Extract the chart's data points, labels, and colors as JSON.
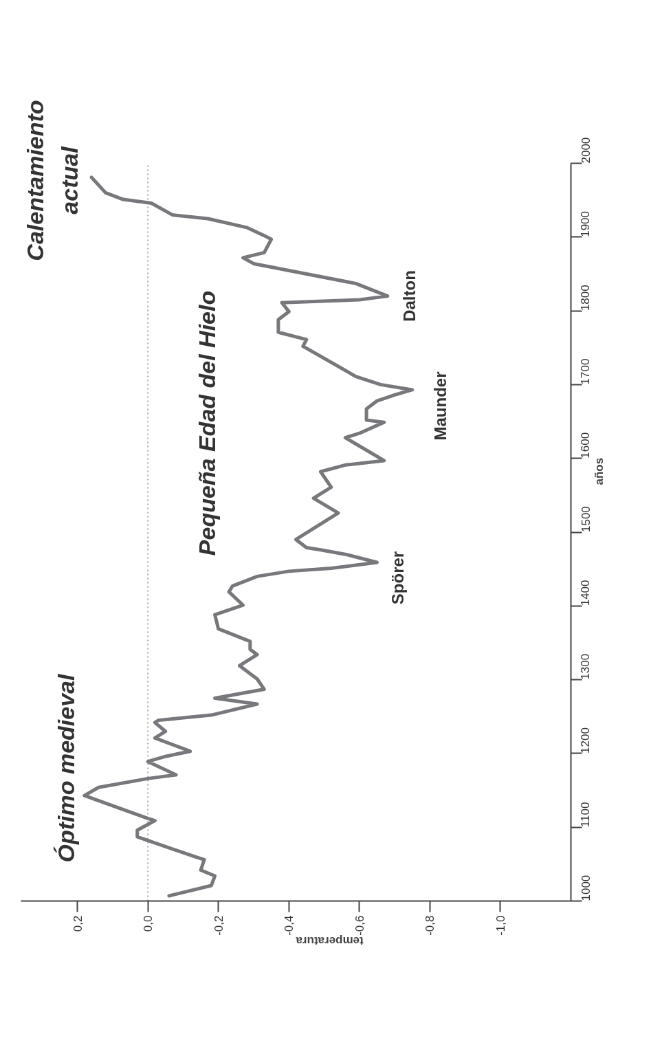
{
  "chart_data": {
    "type": "line",
    "xlabel": "temperatura",
    "ylabel": "años",
    "series": [
      {
        "color": "#77787b",
        "x": [
          -0.06,
          -0.18,
          -0.19,
          -0.15,
          -0.16,
          -0.14,
          0.03,
          0.03,
          -0.02,
          0.0,
          0.18,
          0.14,
          0.0,
          -0.08,
          0.0,
          -0.05,
          -0.12,
          -0.02,
          -0.05,
          -0.02,
          -0.03,
          -0.18,
          -0.31,
          -0.19,
          -0.33,
          -0.31,
          -0.26,
          -0.31,
          -0.29,
          -0.29,
          -0.2,
          -0.19,
          -0.27,
          -0.23,
          -0.24,
          -0.31,
          -0.4,
          -0.52,
          -0.65,
          -0.56,
          -0.49,
          -0.45,
          -0.42,
          -0.54,
          -0.47,
          -0.52,
          -0.49,
          -0.56,
          -0.67,
          -0.56,
          -0.6,
          -0.67,
          -0.62,
          -0.62,
          -0.65,
          -0.7,
          -0.75,
          -0.66,
          -0.59,
          -0.44,
          -0.45,
          -0.37,
          -0.37,
          -0.4,
          -0.38,
          -0.6,
          -0.68,
          -0.59,
          -0.3,
          -0.27,
          -0.33,
          -0.35,
          -0.33,
          -0.28,
          -0.17,
          -0.07,
          -0.01,
          0.07,
          0.12,
          0.16
        ],
        "values": [
          1007,
          1021,
          1034,
          1042,
          1056,
          1059,
          1087,
          1096,
          1109,
          1112,
          1143,
          1154,
          1166,
          1171,
          1189,
          1196,
          1203,
          1221,
          1230,
          1242,
          1245,
          1252,
          1267,
          1275,
          1287,
          1301,
          1319,
          1334,
          1341,
          1352,
          1369,
          1388,
          1401,
          1419,
          1427,
          1440,
          1447,
          1451,
          1459,
          1470,
          1476,
          1479,
          1490,
          1526,
          1546,
          1561,
          1582,
          1591,
          1597,
          1628,
          1634,
          1649,
          1652,
          1667,
          1678,
          1686,
          1693,
          1700,
          1711,
          1752,
          1761,
          1771,
          1788,
          1799,
          1811,
          1815,
          1820,
          1837,
          1864,
          1872,
          1879,
          1897,
          1902,
          1913,
          1925,
          1930,
          1946,
          1951,
          1960,
          1981
        ]
      }
    ],
    "ylim": [
      1000,
      2000
    ],
    "yticks": [
      1000,
      1100,
      1200,
      1300,
      1400,
      1500,
      1600,
      1700,
      1800,
      1900,
      2000
    ],
    "xlim": [
      0.36,
      -1.2
    ],
    "xticks": [
      {
        "value": 0.2,
        "label": "0,2"
      },
      {
        "value": 0.0,
        "label": "0,0"
      },
      {
        "value": -0.2,
        "label": "-0,2"
      },
      {
        "value": -0.4,
        "label": "-0,4"
      },
      {
        "value": -0.6,
        "label": "-0,6"
      },
      {
        "value": -0.8,
        "label": "-0,8"
      },
      {
        "value": -1.0,
        "label": "-1,0"
      }
    ],
    "ref_lines": [
      {
        "axis": "x",
        "value": 0,
        "color": "#aaaaaa",
        "line_style": "dotted"
      }
    ],
    "grid": false,
    "marker": "none",
    "line_style": "solid",
    "annotations": [
      "Calentamiento\nactual",
      "Óptimo medieval",
      "Pequeña Edad del Hielo",
      "Spörer",
      "Maunder",
      "Dalton"
    ]
  }
}
